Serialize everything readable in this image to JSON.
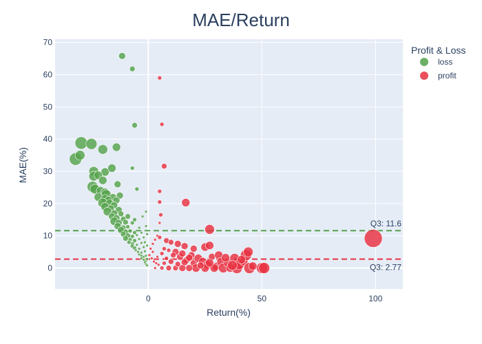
{
  "chart_data": {
    "type": "scatter",
    "title": "MAE/Return",
    "xlabel": "Return(%)",
    "ylabel": "MAE(%)",
    "xlim": [
      -41,
      112
    ],
    "ylim": [
      -6.5,
      71
    ],
    "xticks": [
      0,
      50,
      100
    ],
    "yticks": [
      0,
      10,
      20,
      30,
      40,
      50,
      60,
      70
    ],
    "grid": true,
    "legend": {
      "title": "Profit & Loss",
      "placement": "top-right",
      "entries": [
        {
          "name": "loss",
          "color": "#54a24b"
        },
        {
          "name": "profit",
          "color": "#e8303f"
        }
      ]
    },
    "hlines": [
      {
        "y": 11.6,
        "label": "Q3: 11.6",
        "color": "#54a24b"
      },
      {
        "y": 2.77,
        "label": "Q3: 2.77",
        "color": "#e8303f"
      }
    ],
    "series": [
      {
        "name": "loss",
        "color": "#54a24b",
        "points": [
          [
            -11.5,
            65.8,
            5
          ],
          [
            -7,
            61.8,
            4
          ],
          [
            -6,
            44.3,
            4
          ],
          [
            -7,
            31,
            3
          ],
          [
            -5,
            24.5,
            3
          ],
          [
            -29.5,
            38.8,
            9
          ],
          [
            -25,
            38.5,
            8
          ],
          [
            -20,
            36.8,
            7
          ],
          [
            -14,
            37.5,
            6
          ],
          [
            -32,
            33.8,
            9
          ],
          [
            -30,
            35,
            7
          ],
          [
            -24,
            30,
            7
          ],
          [
            -19,
            29.8,
            6
          ],
          [
            -16,
            31,
            6
          ],
          [
            -24,
            28.5,
            7
          ],
          [
            -22,
            28.8,
            6
          ],
          [
            -20,
            27.2,
            6
          ],
          [
            -13.5,
            26,
            5
          ],
          [
            -24.5,
            25.2,
            8
          ],
          [
            -23.5,
            24.5,
            7
          ],
          [
            -21,
            24,
            6
          ],
          [
            -19,
            23.5,
            6
          ],
          [
            -18.5,
            22.8,
            7
          ],
          [
            -12.5,
            22.5,
            5
          ],
          [
            -15.5,
            22,
            5
          ],
          [
            -22,
            22,
            6
          ],
          [
            -19,
            21.5,
            6
          ],
          [
            -17.5,
            21.2,
            5
          ],
          [
            -14,
            21,
            5
          ],
          [
            -20,
            20.2,
            7
          ],
          [
            -17,
            20,
            6
          ],
          [
            -15,
            19.5,
            5
          ],
          [
            -19,
            19,
            6
          ],
          [
            -16.5,
            18.5,
            5
          ],
          [
            -13,
            18,
            5
          ],
          [
            -18,
            17.5,
            6
          ],
          [
            -15,
            17,
            5
          ],
          [
            -12,
            16.8,
            4
          ],
          [
            -9,
            16,
            4
          ],
          [
            -16,
            16,
            5
          ],
          [
            -14,
            15.5,
            5
          ],
          [
            -11,
            15.2,
            4
          ],
          [
            -15,
            14.5,
            6
          ],
          [
            -13,
            14,
            5
          ],
          [
            -10,
            14.2,
            4
          ],
          [
            -7,
            14,
            3
          ],
          [
            -13.5,
            13,
            5
          ],
          [
            -11,
            12.5,
            4
          ],
          [
            -9,
            12.8,
            3
          ],
          [
            -12,
            11.8,
            5
          ],
          [
            -10,
            11.2,
            4
          ],
          [
            -8,
            11.5,
            3
          ],
          [
            -6,
            11,
            3
          ],
          [
            -11,
            10.5,
            4
          ],
          [
            -9,
            10,
            4
          ],
          [
            -7,
            9.8,
            3
          ],
          [
            -5,
            10.2,
            2
          ],
          [
            -10,
            9.2,
            4
          ],
          [
            -8,
            8.8,
            3
          ],
          [
            -6,
            8.5,
            3
          ],
          [
            -4,
            9,
            2
          ],
          [
            -8.5,
            8,
            3
          ],
          [
            -7,
            7.5,
            3
          ],
          [
            -5,
            7.2,
            2
          ],
          [
            -3,
            7.8,
            2
          ],
          [
            -7,
            6.8,
            3
          ],
          [
            -6,
            6.2,
            3
          ],
          [
            -4,
            6,
            2
          ],
          [
            -2,
            6.5,
            2
          ],
          [
            -5.5,
            5.5,
            2
          ],
          [
            -4.5,
            5,
            2
          ],
          [
            -3,
            4.8,
            2
          ],
          [
            -1.5,
            5.2,
            2
          ],
          [
            -4,
            4.2,
            2
          ],
          [
            -3,
            3.8,
            2
          ],
          [
            -2,
            3.5,
            2
          ],
          [
            -1,
            3.8,
            2
          ],
          [
            -3,
            3,
            2
          ],
          [
            -2,
            2.6,
            2
          ],
          [
            -1,
            2.2,
            2
          ],
          [
            -0.5,
            2.8,
            2
          ],
          [
            -1.5,
            1.8,
            2
          ],
          [
            -1,
            1.2,
            2
          ],
          [
            -0.5,
            0.8,
            2
          ],
          [
            -6,
            15,
            3
          ],
          [
            -4,
            12.5,
            2
          ],
          [
            -3,
            11,
            2
          ],
          [
            -2,
            9.5,
            2
          ],
          [
            -1.5,
            8,
            2
          ],
          [
            -2.5,
            16,
            2
          ],
          [
            -1,
            17.5,
            2
          ],
          [
            -1,
            13,
            2
          ],
          [
            -0.5,
            10.5,
            2
          ],
          [
            -0.5,
            7,
            2
          ]
        ]
      },
      {
        "name": "profit",
        "color": "#e8303f",
        "points": [
          [
            5,
            59,
            3
          ],
          [
            6,
            44.6,
            3
          ],
          [
            7,
            31.6,
            4
          ],
          [
            5,
            23.8,
            3
          ],
          [
            5,
            20.5,
            3
          ],
          [
            5.5,
            16.5,
            3
          ],
          [
            5,
            14,
            2
          ],
          [
            16.5,
            20.3,
            6
          ],
          [
            27,
            12,
            7
          ],
          [
            99,
            9.2,
            13
          ],
          [
            25,
            6.5,
            6
          ],
          [
            27,
            7,
            6
          ],
          [
            16,
            6.8,
            5
          ],
          [
            13,
            7.5,
            5
          ],
          [
            8,
            8.5,
            4
          ],
          [
            4,
            10,
            2
          ],
          [
            3,
            8.8,
            2
          ],
          [
            2,
            7.5,
            2
          ],
          [
            1,
            6,
            2
          ],
          [
            0.5,
            4,
            2
          ],
          [
            1.5,
            3,
            2
          ],
          [
            2.5,
            2,
            2
          ],
          [
            3.5,
            1.5,
            2
          ],
          [
            4.5,
            1,
            2
          ],
          [
            6,
            4.5,
            3
          ],
          [
            8,
            3,
            3
          ],
          [
            10,
            2,
            4
          ],
          [
            12,
            5,
            5
          ],
          [
            14,
            3.5,
            5
          ],
          [
            15,
            4.5,
            5
          ],
          [
            17,
            2.5,
            5
          ],
          [
            19,
            4,
            5
          ],
          [
            20,
            1.5,
            5
          ],
          [
            22,
            3,
            6
          ],
          [
            24,
            2,
            6
          ],
          [
            26,
            1,
            6
          ],
          [
            28,
            3.5,
            5
          ],
          [
            30,
            0.5,
            6
          ],
          [
            31,
            4,
            6
          ],
          [
            32,
            2,
            6
          ],
          [
            33,
            0,
            7
          ],
          [
            35,
            1.5,
            6
          ],
          [
            36,
            0,
            6
          ],
          [
            38,
            3,
            7
          ],
          [
            39,
            0,
            8
          ],
          [
            40,
            1,
            7
          ],
          [
            42,
            2,
            6
          ],
          [
            43,
            4,
            8
          ],
          [
            44,
            5,
            7
          ],
          [
            44.5,
            0,
            8
          ],
          [
            50,
            0,
            8
          ],
          [
            51,
            0,
            8
          ],
          [
            29,
            0,
            6
          ],
          [
            25,
            0,
            6
          ],
          [
            21,
            0,
            6
          ],
          [
            18,
            0,
            5
          ],
          [
            15,
            0,
            5
          ],
          [
            12,
            0,
            4
          ],
          [
            9,
            0,
            4
          ],
          [
            6,
            0,
            3
          ],
          [
            3,
            0,
            2
          ],
          [
            7,
            6,
            3
          ],
          [
            9,
            5.5,
            3
          ],
          [
            11,
            4,
            4
          ],
          [
            13,
            1.2,
            4
          ],
          [
            16,
            1.8,
            5
          ],
          [
            18,
            3.2,
            5
          ],
          [
            23,
            0.8,
            5
          ],
          [
            27,
            1.6,
            6
          ],
          [
            34,
            3.2,
            6
          ],
          [
            37,
            0.8,
            7
          ],
          [
            41,
            2.6,
            6
          ],
          [
            46,
            0.6,
            6
          ],
          [
            20,
            6,
            5
          ],
          [
            10,
            8,
            4
          ],
          [
            5,
            9.5,
            3
          ],
          [
            2,
            5,
            2
          ],
          [
            4,
            3.5,
            2
          ],
          [
            7,
            1.5,
            3
          ]
        ]
      }
    ]
  }
}
